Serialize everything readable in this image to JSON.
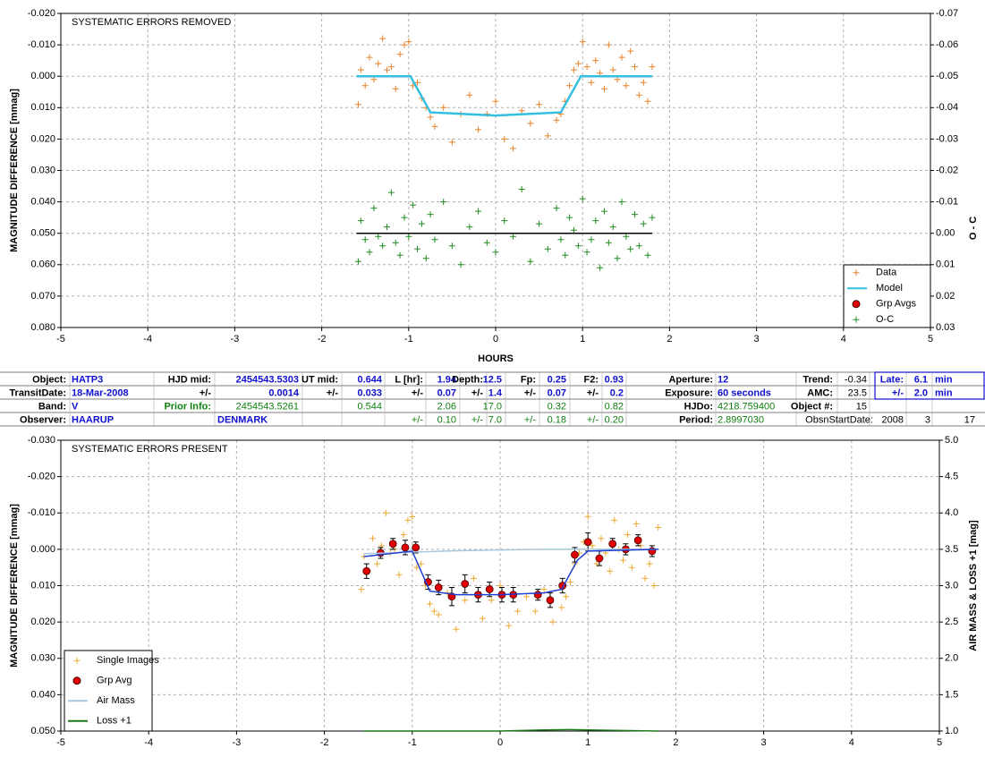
{
  "chart_data": [
    {
      "type": "scatter",
      "title": "SYSTEMATIC ERRORS REMOVED",
      "x_label": "HOURS",
      "y_label": "MAGNITUDE DIFFERENCE [mmag]",
      "y2_label": "O - C",
      "xlim": [
        -5,
        5
      ],
      "xticks": [
        -5,
        -4,
        -3,
        -2,
        -1,
        0,
        1,
        2,
        3,
        4,
        5
      ],
      "ylim": [
        -0.02,
        0.08
      ],
      "y_inverted": true,
      "yticks": [
        {
          "value": -0.02,
          "label": "-0.020"
        },
        {
          "value": -0.01,
          "label": "-0.010"
        },
        {
          "value": 0,
          "label": "0.000"
        },
        {
          "value": 0.01,
          "label": "0.010"
        },
        {
          "value": 0.02,
          "label": "0.020"
        },
        {
          "value": 0.03,
          "label": "0.030"
        },
        {
          "value": 0.04,
          "label": "0.040"
        },
        {
          "value": 0.05,
          "label": "0.050"
        },
        {
          "value": 0.06,
          "label": "0.060"
        },
        {
          "value": 0.07,
          "label": "0.070"
        },
        {
          "value": 0.08,
          "label": "0.080"
        }
      ],
      "y2lim": [
        -0.07,
        0.03
      ],
      "y2_inverted": true,
      "y2ticks": [
        {
          "value": -0.07,
          "label": "-0.07"
        },
        {
          "value": -0.06,
          "label": "-0.06"
        },
        {
          "value": -0.05,
          "label": "-0.05"
        },
        {
          "value": -0.04,
          "label": "-0.04"
        },
        {
          "value": -0.03,
          "label": "-0.03"
        },
        {
          "value": -0.02,
          "label": "-0.02"
        },
        {
          "value": -0.01,
          "label": "-0.01"
        },
        {
          "value": 0,
          "label": "0.00"
        },
        {
          "value": 0.01,
          "label": "0.01"
        },
        {
          "value": 0.02,
          "label": "0.02"
        },
        {
          "value": 0.03,
          "label": "0.03"
        }
      ],
      "grid": true,
      "legend": "lower right",
      "series": [
        {
          "name": "Data",
          "color": "#e8822a",
          "marker": "plus",
          "x": [
            -1.58,
            -1.55,
            -1.5,
            -1.45,
            -1.4,
            -1.35,
            -1.3,
            -1.25,
            -1.2,
            -1.15,
            -1.1,
            -1.05,
            -1.0,
            -0.95,
            -0.9,
            -0.85,
            -0.8,
            -0.75,
            -0.7,
            -0.6,
            -0.5,
            -0.4,
            -0.3,
            -0.2,
            -0.1,
            0,
            0.1,
            0.2,
            0.3,
            0.4,
            0.5,
            0.6,
            0.7,
            0.75,
            0.8,
            0.85,
            0.9,
            0.95,
            1.0,
            1.05,
            1.1,
            1.15,
            1.2,
            1.25,
            1.3,
            1.35,
            1.4,
            1.45,
            1.5,
            1.55,
            1.6,
            1.65,
            1.7,
            1.75,
            1.8
          ],
          "values": [
            0.009,
            -0.002,
            0.003,
            -0.006,
            0.001,
            -0.004,
            -0.012,
            -0.002,
            -0.003,
            0.004,
            -0.007,
            -0.01,
            -0.011,
            0.003,
            0.002,
            0.007,
            0.01,
            0.013,
            0.016,
            0.01,
            0.021,
            0.012,
            0.006,
            0.017,
            0.012,
            0.008,
            0.02,
            0.023,
            0.011,
            0.015,
            0.009,
            0.019,
            0.014,
            0.012,
            0.008,
            0.003,
            -0.002,
            -0.004,
            -0.011,
            -0.003,
            0.002,
            -0.005,
            -0.001,
            0.004,
            -0.01,
            -0.002,
            0.001,
            -0.006,
            0.003,
            -0.008,
            -0.003,
            0.006,
            0.002,
            0.008,
            -0.003
          ]
        },
        {
          "name": "Model",
          "color": "#33c0e0",
          "marker": "line",
          "x": [
            -1.6,
            -0.98,
            -0.75,
            0,
            0.75,
            0.98,
            1.8
          ],
          "values": [
            0,
            0,
            0.0115,
            0.0125,
            0.0115,
            0,
            0
          ]
        },
        {
          "name": "Grp Avgs",
          "color": "#e00000",
          "marker": "circle",
          "x": [],
          "values": []
        },
        {
          "name": "O-C",
          "color": "#228b22",
          "marker": "plus",
          "axis": "y2",
          "x": [
            -1.58,
            -1.55,
            -1.5,
            -1.45,
            -1.4,
            -1.35,
            -1.3,
            -1.25,
            -1.2,
            -1.15,
            -1.1,
            -1.05,
            -1.0,
            -0.95,
            -0.9,
            -0.85,
            -0.8,
            -0.75,
            -0.7,
            -0.6,
            -0.5,
            -0.4,
            -0.3,
            -0.2,
            -0.1,
            0,
            0.1,
            0.2,
            0.3,
            0.4,
            0.5,
            0.6,
            0.7,
            0.75,
            0.8,
            0.85,
            0.9,
            0.95,
            1.0,
            1.05,
            1.1,
            1.15,
            1.2,
            1.25,
            1.3,
            1.35,
            1.4,
            1.45,
            1.5,
            1.55,
            1.6,
            1.65,
            1.7,
            1.75,
            1.8
          ],
          "values": [
            0.009,
            -0.004,
            0.002,
            0.006,
            -0.008,
            0.001,
            0.004,
            -0.002,
            -0.013,
            0.003,
            0.007,
            -0.005,
            0.001,
            -0.009,
            0.005,
            -0.003,
            0.008,
            -0.006,
            0.002,
            -0.01,
            0.004,
            0.01,
            -0.002,
            -0.007,
            0.003,
            0.006,
            -0.004,
            0.001,
            -0.014,
            0.009,
            -0.003,
            0.005,
            -0.008,
            0.002,
            0.007,
            -0.005,
            -0.001,
            0.004,
            -0.011,
            0.006,
            0.002,
            -0.004,
            0.011,
            -0.007,
            0.003,
            -0.002,
            0.008,
            -0.01,
            0.001,
            0.005,
            -0.006,
            0.004,
            -0.003,
            0.007,
            -0.005
          ]
        },
        {
          "color": "#000000",
          "marker": "line",
          "axis": "y2",
          "x": [
            -1.6,
            1.8
          ],
          "values": [
            0,
            0
          ]
        }
      ]
    },
    {
      "type": "scatter",
      "title": "SYSTEMATIC ERRORS PRESENT",
      "y_label": "MAGNITUDE DIFFERENCE [mmag]",
      "y2_label": "AIR MASS & LOSS +1 [mag]",
      "xlim": [
        -5,
        5
      ],
      "xticks": [
        -5,
        -4,
        -3,
        -2,
        -1,
        0,
        1,
        2,
        3,
        4,
        5
      ],
      "ylim": [
        -0.03,
        0.05
      ],
      "y_inverted": true,
      "yticks": [
        {
          "value": -0.03,
          "label": "-0.030"
        },
        {
          "value": -0.02,
          "label": "-0.020"
        },
        {
          "value": -0.01,
          "label": "-0.010"
        },
        {
          "value": 0,
          "label": "0.000"
        },
        {
          "value": 0.01,
          "label": "0.010"
        },
        {
          "value": 0.02,
          "label": "0.020"
        },
        {
          "value": 0.03,
          "label": "0.030"
        },
        {
          "value": 0.04,
          "label": "0.040"
        },
        {
          "value": 0.05,
          "label": "0.050"
        }
      ],
      "y2lim": [
        1,
        5
      ],
      "y2ticks": [
        {
          "value": 1,
          "label": "1.0"
        },
        {
          "value": 1.5,
          "label": "1.5"
        },
        {
          "value": 2,
          "label": "2.0"
        },
        {
          "value": 2.5,
          "label": "2.5"
        },
        {
          "value": 3,
          "label": "3.0"
        },
        {
          "value": 3.5,
          "label": "3.5"
        },
        {
          "value": 4,
          "label": "4.0"
        },
        {
          "value": 4.5,
          "label": "4.5"
        },
        {
          "value": 5,
          "label": "5.0"
        }
      ],
      "grid": true,
      "legend": "lower left",
      "series": [
        {
          "name": "Single Images",
          "color": "#f0a830",
          "marker": "plus",
          "x": [
            -1.58,
            -1.55,
            -1.5,
            -1.45,
            -1.4,
            -1.35,
            -1.3,
            -1.25,
            -1.2,
            -1.15,
            -1.1,
            -1.05,
            -1.0,
            -0.95,
            -0.9,
            -0.85,
            -0.8,
            -0.75,
            -0.7,
            -0.6,
            -0.5,
            -0.4,
            -0.3,
            -0.2,
            -0.1,
            0,
            0.1,
            0.2,
            0.3,
            0.4,
            0.5,
            0.6,
            0.7,
            0.75,
            0.8,
            0.85,
            0.9,
            0.95,
            1.0,
            1.05,
            1.1,
            1.15,
            1.2,
            1.25,
            1.3,
            1.35,
            1.4,
            1.45,
            1.5,
            1.55,
            1.6,
            1.65,
            1.7,
            1.75,
            1.8
          ],
          "values": [
            0.011,
            0.002,
            0.006,
            -0.003,
            0.004,
            -0.001,
            -0.01,
            0.001,
            0.0,
            0.007,
            -0.004,
            -0.008,
            -0.009,
            0.005,
            0.004,
            0.01,
            0.015,
            0.017,
            0.018,
            0.012,
            0.022,
            0.014,
            0.008,
            0.019,
            0.014,
            0.01,
            0.021,
            0.017,
            0.013,
            0.017,
            0.011,
            0.02,
            0.016,
            0.013,
            0.009,
            0.004,
            0.001,
            -0.002,
            -0.009,
            -0.001,
            0.004,
            -0.003,
            0.001,
            0.006,
            -0.008,
            0.0,
            0.003,
            -0.004,
            0.005,
            -0.007,
            -0.001,
            0.008,
            0.004,
            0.01,
            -0.006
          ]
        },
        {
          "name": "Grp Avg",
          "color": "#e00000",
          "marker": "circle",
          "x": [
            -1.52,
            -1.36,
            -1.22,
            -1.08,
            -0.96,
            -0.82,
            -0.7,
            -0.55,
            -0.4,
            -0.25,
            -0.12,
            0.02,
            0.15,
            0.43,
            0.57,
            0.71,
            0.85,
            1.0,
            1.13,
            1.28,
            1.43,
            1.57,
            1.73
          ],
          "values": [
            0.006,
            0.001,
            -0.0015,
            -0.0005,
            -0.0005,
            0.009,
            0.0105,
            0.013,
            0.0095,
            0.0125,
            0.011,
            0.0125,
            0.0125,
            0.0125,
            0.014,
            0.01,
            0.0015,
            -0.002,
            0.0025,
            -0.0015,
            0,
            -0.0025,
            0.0005
          ],
          "errors": [
            0.002,
            0.0015,
            0.0015,
            0.002,
            0.0015,
            0.002,
            0.002,
            0.0025,
            0.0025,
            0.002,
            0.002,
            0.002,
            0.002,
            0.0015,
            0.002,
            0.002,
            0.002,
            0.0025,
            0.002,
            0.0015,
            0.0015,
            0.0015,
            0.0015
          ]
        },
        {
          "name": "Air Mass",
          "color": "#a8c8e0",
          "marker": "line",
          "axis": "y2",
          "x": [
            -1.55,
            -1.0,
            -0.5,
            0,
            0.5,
            1.0,
            1.5,
            1.8
          ],
          "values": [
            3.44,
            3.46,
            3.48,
            3.49,
            3.5,
            3.5,
            3.5,
            3.5
          ]
        },
        {
          "name": "Loss +1",
          "color": "#1a7a1a",
          "marker": "line",
          "axis": "y2",
          "x": [
            -1.55,
            -1.0,
            -0.5,
            0,
            0.3,
            0.5,
            0.8,
            1.0,
            1.3,
            1.8
          ],
          "values": [
            1.0,
            1.0,
            1.0,
            1.0,
            1.01,
            1.015,
            1.02,
            1.015,
            1.01,
            1.0
          ]
        },
        {
          "color": "#1f3fd0",
          "marker": "line",
          "x": [
            -1.55,
            -1.0,
            -0.8,
            -0.5,
            0,
            0.5,
            0.7,
            0.88,
            1.0,
            1.8
          ],
          "values": [
            0.002,
            0.0005,
            0.0115,
            0.0125,
            0.0125,
            0.012,
            0.011,
            0.003,
            0.0005,
            0
          ]
        }
      ]
    }
  ],
  "table": {
    "rows": [
      [
        "Object:",
        "HATP3",
        "HJD mid:",
        "2454543.5303",
        "UT mid:",
        "0.644",
        "L [hr]:",
        "1.94",
        "Depth:",
        "12.5",
        "Fp:",
        "0.25",
        "F2:",
        "0.93",
        "Aperture:",
        "12",
        "Trend:",
        "-0.34",
        "Late:",
        "6.1",
        "min"
      ],
      [
        "TransitDate:",
        "18-Mar-2008",
        "+/-",
        "0.0014",
        "+/-",
        "0.033",
        "+/-",
        "0.07",
        "+/-",
        "1.4",
        "+/-",
        "0.07",
        "+/-",
        "0.2",
        "Exposure:",
        "60 seconds",
        "AMC:",
        "23.5",
        "+/-",
        "2.0",
        "min"
      ],
      [
        "Band:",
        "V",
        "Prior Info:",
        "2454543.5261",
        "0.544",
        "2.06",
        "17.0",
        "0.32",
        "0.82",
        "HJDo:",
        "4218.759400",
        "Object #:",
        "15"
      ],
      [
        "Observer:",
        "HAARUP",
        "DENMARK",
        "+/-",
        "0.10",
        "+/-",
        "7.0",
        "+/-",
        "0.18",
        "+/-",
        "0.20",
        "Period:",
        "2.8997030",
        "ObsnStartDate:",
        "2008",
        "3",
        "17"
      ]
    ]
  }
}
